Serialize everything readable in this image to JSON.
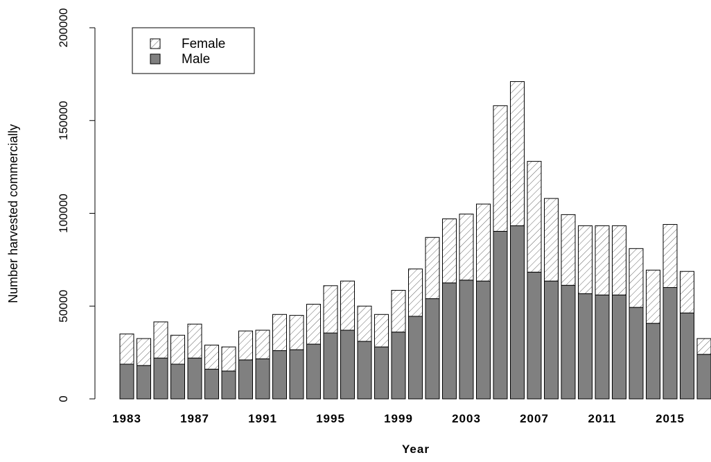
{
  "chart_data": {
    "type": "stacked-bar",
    "x_label": "Year",
    "y_label": "Number harvested commercially",
    "categories": [
      "1983",
      null,
      null,
      null,
      "1987",
      null,
      null,
      null,
      "1991",
      null,
      null,
      null,
      "1995",
      null,
      null,
      null,
      "1999",
      null,
      null,
      null,
      "2003",
      null,
      null,
      null,
      "2007",
      null,
      null,
      null,
      "2011",
      null,
      null,
      null,
      "2015",
      null,
      null
    ],
    "series": [
      {
        "name": "Male",
        "color": "#808080",
        "pattern": "solid",
        "values": [
          18700,
          18000,
          22000,
          18700,
          22000,
          16000,
          15000,
          21000,
          21600,
          26000,
          26500,
          29500,
          35500,
          37000,
          31000,
          28000,
          36000,
          44500,
          54000,
          62500,
          64000,
          63500,
          90300,
          93300,
          68300,
          63500,
          61200,
          56700,
          56000,
          56000,
          49300,
          40700,
          60000,
          46300,
          24000
        ]
      },
      {
        "name": "Female",
        "color": "#ffffff",
        "pattern": "hatch",
        "values": [
          16300,
          14500,
          19500,
          15600,
          18300,
          13000,
          13000,
          15600,
          15400,
          19500,
          18500,
          21500,
          25500,
          26500,
          19000,
          17500,
          22500,
          25500,
          33000,
          34500,
          35600,
          41500,
          67700,
          77700,
          59700,
          44500,
          38100,
          36600,
          37300,
          37300,
          31700,
          28700,
          34000,
          22400,
          8500
        ]
      }
    ],
    "ylim": [
      0,
      200000
    ],
    "yticks": [
      0,
      50000,
      100000,
      150000,
      200000
    ],
    "legend": "top-left"
  }
}
